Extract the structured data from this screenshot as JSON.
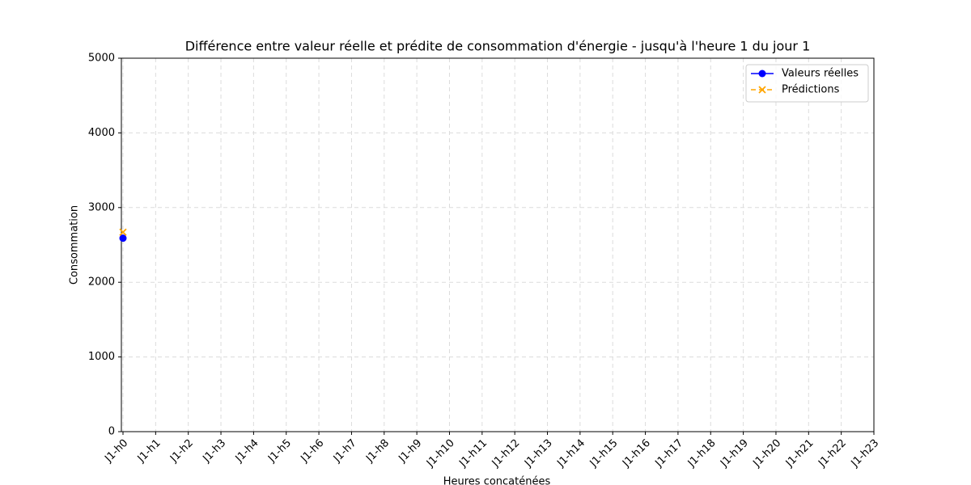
{
  "chart_data": {
    "type": "line",
    "title": "Différence entre valeur réelle et prédite de consommation d'énergie - jusqu'à l'heure 1 du jour 1",
    "x_label": "Heures concaténées",
    "y_label": "Consommation",
    "categories": [
      "J1-h0",
      "J1-h1",
      "J1-h2",
      "J1-h3",
      "J1-h4",
      "J1-h5",
      "J1-h6",
      "J1-h7",
      "J1-h8",
      "J1-h9",
      "J1-h10",
      "J1-h11",
      "J1-h12",
      "J1-h13",
      "J1-h14",
      "J1-h15",
      "J1-h16",
      "J1-h17",
      "J1-h18",
      "J1-h19",
      "J1-h20",
      "J1-h21",
      "J1-h22",
      "J1-h23"
    ],
    "series": [
      {
        "name": "Valeurs réelles",
        "color": "#0000ff",
        "marker": "circle",
        "dash": "solid",
        "values": [
          2590,
          null,
          null,
          null,
          null,
          null,
          null,
          null,
          null,
          null,
          null,
          null,
          null,
          null,
          null,
          null,
          null,
          null,
          null,
          null,
          null,
          null,
          null,
          null
        ]
      },
      {
        "name": "Prédictions",
        "color": "#ffa500",
        "marker": "x",
        "dash": "dashed",
        "values": [
          2670,
          null,
          null,
          null,
          null,
          null,
          null,
          null,
          null,
          null,
          null,
          null,
          null,
          null,
          null,
          null,
          null,
          null,
          null,
          null,
          null,
          null,
          null,
          null
        ]
      }
    ],
    "ylim": [
      0,
      5000
    ],
    "yticks": [
      0,
      1000,
      2000,
      3000,
      4000,
      5000
    ],
    "grid": true,
    "legend": "upper right"
  }
}
